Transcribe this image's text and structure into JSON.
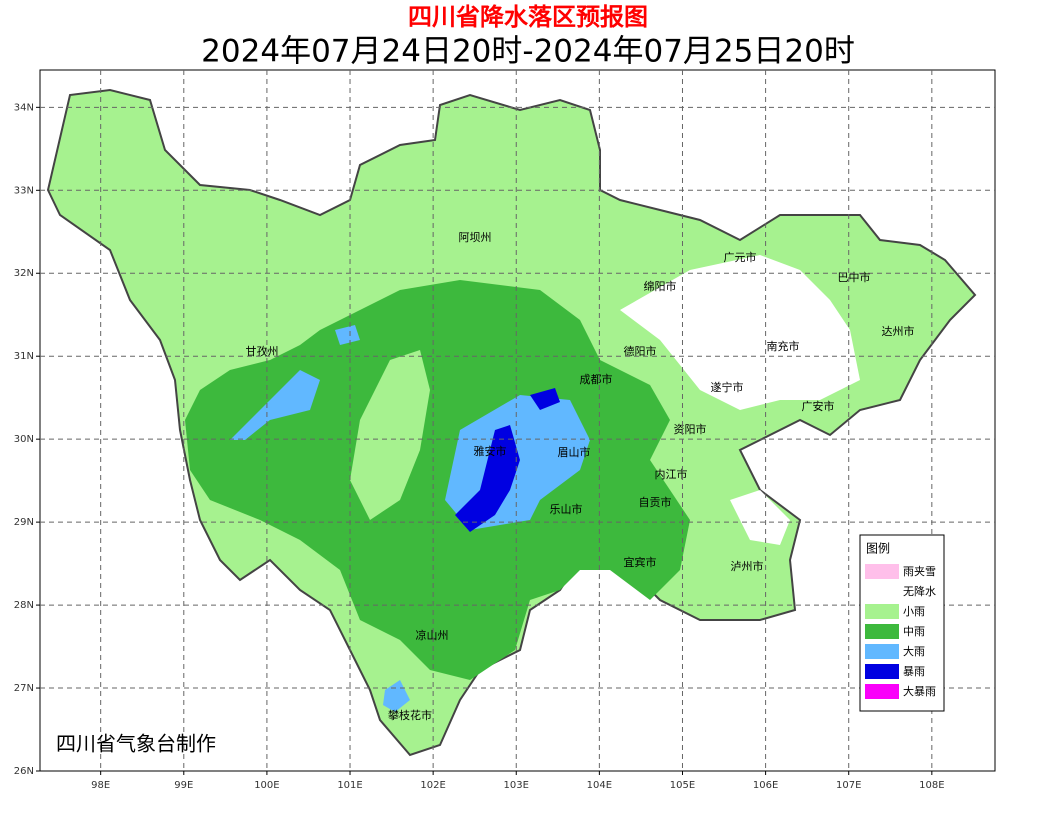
{
  "header": {
    "title": "四川省降水落区预报图",
    "subtitle": "2024年07月24日20时-2024年07月25日20时"
  },
  "map": {
    "xlim": [
      97.27,
      108.76
    ],
    "ylim": [
      26,
      34.45
    ],
    "xticks": [
      {
        "value": 98,
        "label": "98E"
      },
      {
        "value": 99,
        "label": "99E"
      },
      {
        "value": 100,
        "label": "100E"
      },
      {
        "value": 101,
        "label": "101E"
      },
      {
        "value": 102,
        "label": "102E"
      },
      {
        "value": 103,
        "label": "103E"
      },
      {
        "value": 104,
        "label": "104E"
      },
      {
        "value": 105,
        "label": "105E"
      },
      {
        "value": 106,
        "label": "106E"
      },
      {
        "value": 107,
        "label": "107E"
      },
      {
        "value": 108,
        "label": "108E"
      }
    ],
    "yticks": [
      {
        "value": 26,
        "label": "26N"
      },
      {
        "value": 27,
        "label": "27N"
      },
      {
        "value": 28,
        "label": "28N"
      },
      {
        "value": 29,
        "label": "29N"
      },
      {
        "value": 30,
        "label": "30N"
      },
      {
        "value": 31,
        "label": "31N"
      },
      {
        "value": 32,
        "label": "32N"
      },
      {
        "value": 33,
        "label": "33N"
      },
      {
        "value": 34,
        "label": "34N"
      }
    ],
    "grid": true,
    "regions": [
      "阿坝州",
      "广元市",
      "巴中市",
      "绵阳市",
      "达州市",
      "甘孜州",
      "德阳市",
      "南充市",
      "成都市",
      "遂宁市",
      "广安市",
      "资阳市",
      "雅安市",
      "眉山市",
      "内江市",
      "自贡市",
      "乐山市",
      "宜宾市",
      "泸州市",
      "凉山州",
      "攀枝花市"
    ]
  },
  "legend": {
    "title": "图例",
    "items": [
      {
        "label": "雨夹雪",
        "color": "#ffbfea"
      },
      {
        "label": "无降水",
        "color": "#ffffff"
      },
      {
        "label": "小雨",
        "color": "#a6f28f"
      },
      {
        "label": "中雨",
        "color": "#3db93d"
      },
      {
        "label": "大雨",
        "color": "#61b8ff"
      },
      {
        "label": "暴雨",
        "color": "#0000e1"
      },
      {
        "label": "大暴雨",
        "color": "#fa00fa"
      }
    ]
  },
  "credit": "四川省气象台制作"
}
